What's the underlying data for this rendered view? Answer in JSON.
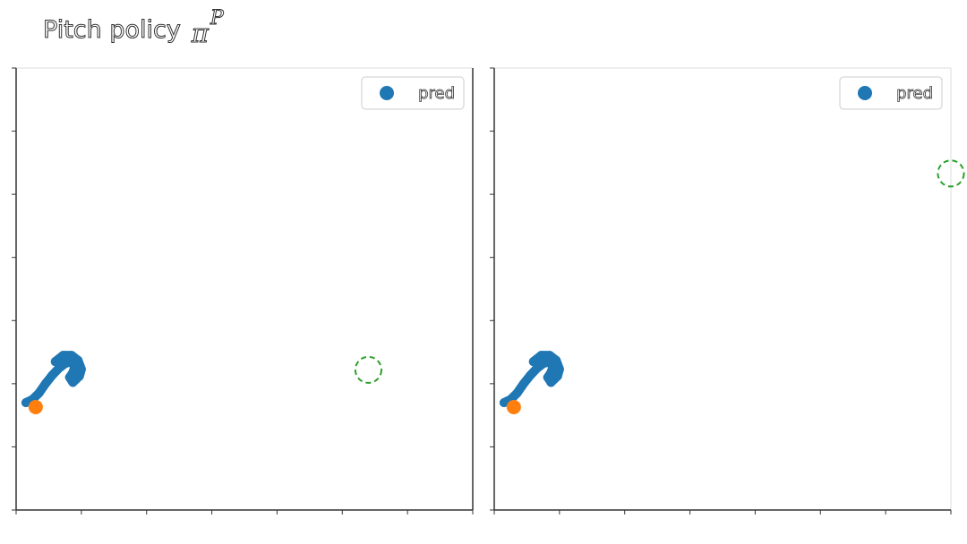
{
  "figure": {
    "title": "Pitch policy",
    "title_symbol": "π",
    "title_superscript": "P"
  },
  "colors": {
    "pred": "#1f77b4",
    "start": "#ff7f0e",
    "goal": "#2ca02c",
    "axis": "#333333"
  },
  "chart_data": [
    {
      "type": "scatter",
      "legend": {
        "entries": [
          "pred"
        ],
        "placement": "top-right"
      },
      "xlim": [
        0,
        0.7
      ],
      "ylim": [
        0,
        0.7
      ],
      "grid": false,
      "x_ticks": [
        0,
        0.1,
        0.2,
        0.3,
        0.4,
        0.5,
        0.6,
        0.7
      ],
      "y_ticks": [
        0,
        0.1,
        0.2,
        0.3,
        0.4,
        0.5,
        0.6,
        0.7
      ],
      "series": [
        {
          "name": "pred",
          "role": "trajectory",
          "points": [
            [
              0.015,
              0.17
            ],
            [
              0.025,
              0.175
            ],
            [
              0.035,
              0.185
            ],
            [
              0.045,
              0.2
            ],
            [
              0.055,
              0.213
            ],
            [
              0.065,
              0.224
            ],
            [
              0.075,
              0.232
            ],
            [
              0.084,
              0.235
            ],
            [
              0.09,
              0.227
            ],
            [
              0.087,
              0.218
            ],
            [
              0.082,
              0.21
            ],
            [
              0.087,
              0.202
            ],
            [
              0.097,
              0.212
            ],
            [
              0.1,
              0.223
            ],
            [
              0.095,
              0.237
            ],
            [
              0.085,
              0.245
            ],
            [
              0.072,
              0.245
            ],
            [
              0.06,
              0.235
            ]
          ]
        }
      ],
      "start": [
        0.03,
        0.163
      ],
      "goal": {
        "center": [
          0.54,
          0.222
        ],
        "radius": 0.02,
        "style": "dashed"
      }
    },
    {
      "type": "scatter",
      "legend": {
        "entries": [
          "pred"
        ],
        "placement": "top-right"
      },
      "xlim": [
        0,
        0.7
      ],
      "ylim": [
        0,
        0.7
      ],
      "grid": false,
      "x_ticks": [
        0,
        0.1,
        0.2,
        0.3,
        0.4,
        0.5,
        0.6,
        0.7
      ],
      "y_ticks": [
        0,
        0.1,
        0.2,
        0.3,
        0.4,
        0.5,
        0.6,
        0.7
      ],
      "series": [
        {
          "name": "pred",
          "role": "trajectory",
          "points": [
            [
              0.015,
              0.17
            ],
            [
              0.025,
              0.175
            ],
            [
              0.035,
              0.185
            ],
            [
              0.045,
              0.2
            ],
            [
              0.055,
              0.213
            ],
            [
              0.065,
              0.224
            ],
            [
              0.075,
              0.232
            ],
            [
              0.084,
              0.235
            ],
            [
              0.09,
              0.227
            ],
            [
              0.087,
              0.218
            ],
            [
              0.082,
              0.21
            ],
            [
              0.087,
              0.202
            ],
            [
              0.097,
              0.212
            ],
            [
              0.1,
              0.223
            ],
            [
              0.095,
              0.237
            ],
            [
              0.085,
              0.245
            ],
            [
              0.072,
              0.245
            ],
            [
              0.06,
              0.235
            ]
          ]
        }
      ],
      "start": [
        0.03,
        0.163
      ],
      "goal": {
        "center": [
          0.7,
          0.533
        ],
        "radius": 0.02,
        "style": "dashed"
      }
    }
  ]
}
